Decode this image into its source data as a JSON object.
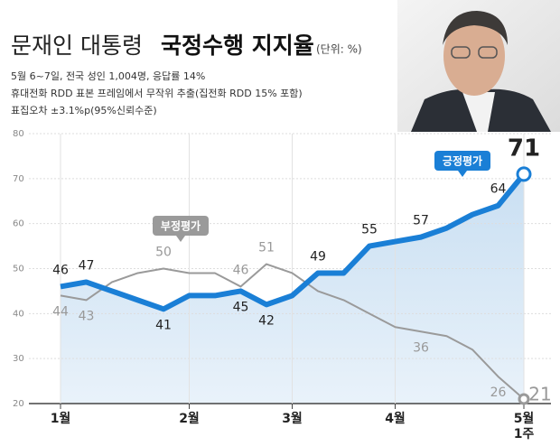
{
  "chart_data": {
    "type": "line",
    "title": "문재인 대통령",
    "title_emphasis": "국정수행 지지율",
    "unit_note": "(단위: %)",
    "notes": [
      "5월 6~7일, 전국 성인 1,004명, 응답률 14%",
      "휴대전화 RDD 표본 프레임에서 무작위 추출(집전화 RDD 15% 포함)",
      "표집오차 ±3.1%p(95%신뢰수준)"
    ],
    "categories": [
      "1월",
      null,
      null,
      null,
      null,
      "2월",
      null,
      null,
      null,
      "3월",
      null,
      null,
      null,
      "4월",
      null,
      null,
      null,
      null,
      "5월"
    ],
    "last_category_sublabel": "1주",
    "ylim": [
      20,
      80
    ],
    "yticks": [
      20,
      30,
      40,
      50,
      60,
      70,
      80
    ],
    "grid": true,
    "series": [
      {
        "name": "긍정평가",
        "color": "#1a7fd6",
        "values": [
          46,
          47,
          45,
          43,
          41,
          44,
          44,
          45,
          42,
          44,
          49,
          49,
          55,
          56,
          57,
          59,
          62,
          64,
          71
        ],
        "value_labels": [
          "46",
          "47",
          null,
          null,
          "41",
          null,
          null,
          "45",
          "42",
          null,
          "49",
          null,
          "55",
          null,
          "57",
          null,
          null,
          "64",
          "71"
        ]
      },
      {
        "name": "부정평가",
        "color": "#9a9a9a",
        "values": [
          44,
          43,
          47,
          49,
          50,
          49,
          49,
          46,
          51,
          49,
          45,
          43,
          40,
          37,
          36,
          35,
          32,
          26,
          21
        ],
        "value_labels": [
          "44",
          "43",
          null,
          null,
          "50",
          null,
          null,
          "46",
          "51",
          null,
          null,
          null,
          null,
          null,
          "36",
          null,
          null,
          "26",
          "21"
        ]
      }
    ]
  }
}
